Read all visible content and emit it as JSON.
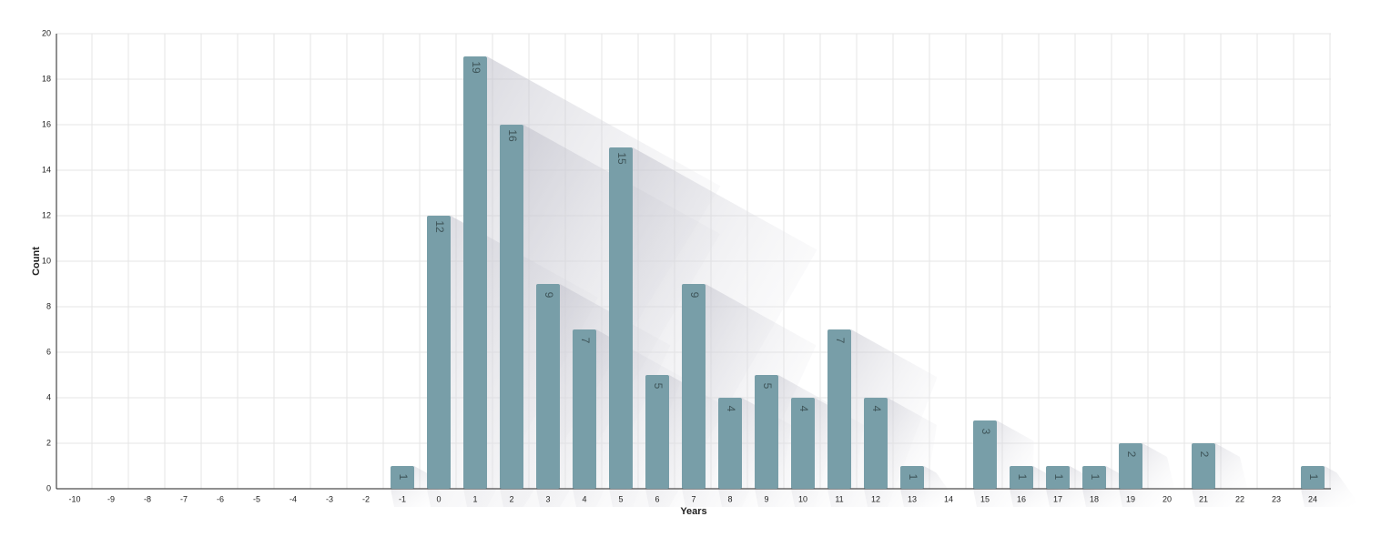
{
  "chart_data": {
    "type": "bar",
    "x_label": "Years",
    "y_label": "Count",
    "categories": [
      "-10",
      "-9",
      "-8",
      "-7",
      "-6",
      "-5",
      "-4",
      "-3",
      "-2",
      "-1",
      "0",
      "1",
      "2",
      "3",
      "4",
      "5",
      "6",
      "7",
      "8",
      "9",
      "10",
      "11",
      "12",
      "13",
      "14",
      "15",
      "16",
      "17",
      "18",
      "19",
      "20",
      "21",
      "22",
      "23",
      "24"
    ],
    "values": [
      0,
      0,
      0,
      0,
      0,
      0,
      0,
      0,
      0,
      1,
      12,
      19,
      16,
      9,
      7,
      15,
      5,
      9,
      4,
      5,
      4,
      7,
      4,
      1,
      0,
      3,
      1,
      1,
      1,
      2,
      0,
      2,
      0,
      0,
      1
    ],
    "color": "#789ea8",
    "ylim": [
      0,
      20
    ],
    "yticks": [
      0,
      2,
      4,
      6,
      8,
      10,
      12,
      14,
      16,
      18,
      20
    ],
    "grid": true
  }
}
